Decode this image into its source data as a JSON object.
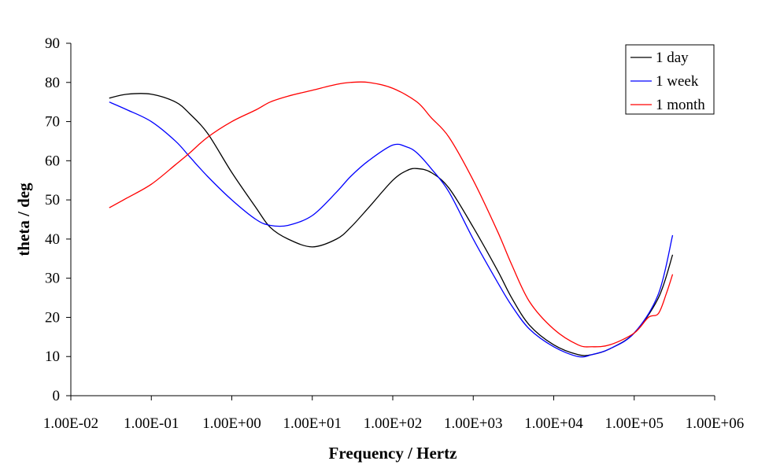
{
  "chart_data": {
    "type": "line",
    "title": "",
    "xlabel": "Frequency / Hertz",
    "ylabel": "theta / deg",
    "x_scale": "log",
    "xlim": [
      0.01,
      1000000
    ],
    "ylim": [
      0,
      90
    ],
    "x_ticks": [
      0.01,
      0.1,
      1,
      10,
      100,
      1000,
      10000,
      100000,
      1000000
    ],
    "x_tick_labels": [
      "1.00E-02",
      "1.00E-01",
      "1.00E+00",
      "1.00E+01",
      "1.00E+02",
      "1.00E+03",
      "1.00E+04",
      "1.00E+05",
      "1.00E+06"
    ],
    "y_ticks": [
      0,
      10,
      20,
      30,
      40,
      50,
      60,
      70,
      80,
      90
    ],
    "y_tick_labels": [
      "0",
      "10",
      "20",
      "30",
      "40",
      "50",
      "60",
      "70",
      "80",
      "90"
    ],
    "grid": false,
    "legend_position": "top-right",
    "series": [
      {
        "name": "1 day",
        "color": "#000000",
        "points": [
          [
            0.03,
            76
          ],
          [
            0.05,
            77
          ],
          [
            0.1,
            77
          ],
          [
            0.2,
            75
          ],
          [
            0.3,
            72
          ],
          [
            0.5,
            67
          ],
          [
            1,
            57
          ],
          [
            2,
            48
          ],
          [
            3,
            43
          ],
          [
            5,
            40
          ],
          [
            10,
            38
          ],
          [
            20,
            40
          ],
          [
            30,
            43
          ],
          [
            50,
            48
          ],
          [
            100,
            55
          ],
          [
            150,
            57.5
          ],
          [
            200,
            58
          ],
          [
            300,
            57
          ],
          [
            500,
            53
          ],
          [
            1000,
            43
          ],
          [
            2000,
            32
          ],
          [
            3000,
            25
          ],
          [
            5000,
            18
          ],
          [
            10000,
            13
          ],
          [
            20000,
            10.5
          ],
          [
            30000,
            10.5
          ],
          [
            50000,
            12
          ],
          [
            100000,
            16
          ],
          [
            200000,
            25
          ],
          [
            300000,
            36
          ]
        ]
      },
      {
        "name": "1 week",
        "color": "#0000ff",
        "points": [
          [
            0.03,
            75
          ],
          [
            0.05,
            73
          ],
          [
            0.1,
            70
          ],
          [
            0.2,
            65
          ],
          [
            0.3,
            61
          ],
          [
            0.5,
            56
          ],
          [
            1,
            50
          ],
          [
            2,
            45
          ],
          [
            3,
            43.5
          ],
          [
            5,
            43.5
          ],
          [
            10,
            46
          ],
          [
            20,
            52
          ],
          [
            30,
            56
          ],
          [
            50,
            60
          ],
          [
            100,
            64
          ],
          [
            150,
            63.5
          ],
          [
            200,
            62
          ],
          [
            300,
            58
          ],
          [
            500,
            52
          ],
          [
            1000,
            40
          ],
          [
            2000,
            29
          ],
          [
            3000,
            23
          ],
          [
            5000,
            17
          ],
          [
            10000,
            12.5
          ],
          [
            20000,
            10
          ],
          [
            30000,
            10.5
          ],
          [
            50000,
            12
          ],
          [
            100000,
            16
          ],
          [
            200000,
            26
          ],
          [
            300000,
            41
          ]
        ]
      },
      {
        "name": "1 month",
        "color": "#ff0000",
        "points": [
          [
            0.03,
            48
          ],
          [
            0.05,
            50.5
          ],
          [
            0.1,
            54
          ],
          [
            0.2,
            59
          ],
          [
            0.3,
            62
          ],
          [
            0.5,
            66
          ],
          [
            1,
            70
          ],
          [
            2,
            73
          ],
          [
            3,
            75
          ],
          [
            5,
            76.5
          ],
          [
            10,
            78
          ],
          [
            20,
            79.5
          ],
          [
            30,
            80
          ],
          [
            50,
            80
          ],
          [
            100,
            78.5
          ],
          [
            200,
            75
          ],
          [
            300,
            71
          ],
          [
            500,
            66
          ],
          [
            1000,
            55
          ],
          [
            2000,
            42
          ],
          [
            3000,
            33.5
          ],
          [
            5000,
            24
          ],
          [
            10000,
            17
          ],
          [
            20000,
            13
          ],
          [
            30000,
            12.5
          ],
          [
            50000,
            13
          ],
          [
            100000,
            16
          ],
          [
            150000,
            20
          ],
          [
            200000,
            21
          ],
          [
            250000,
            26
          ],
          [
            300000,
            31
          ]
        ]
      }
    ]
  }
}
